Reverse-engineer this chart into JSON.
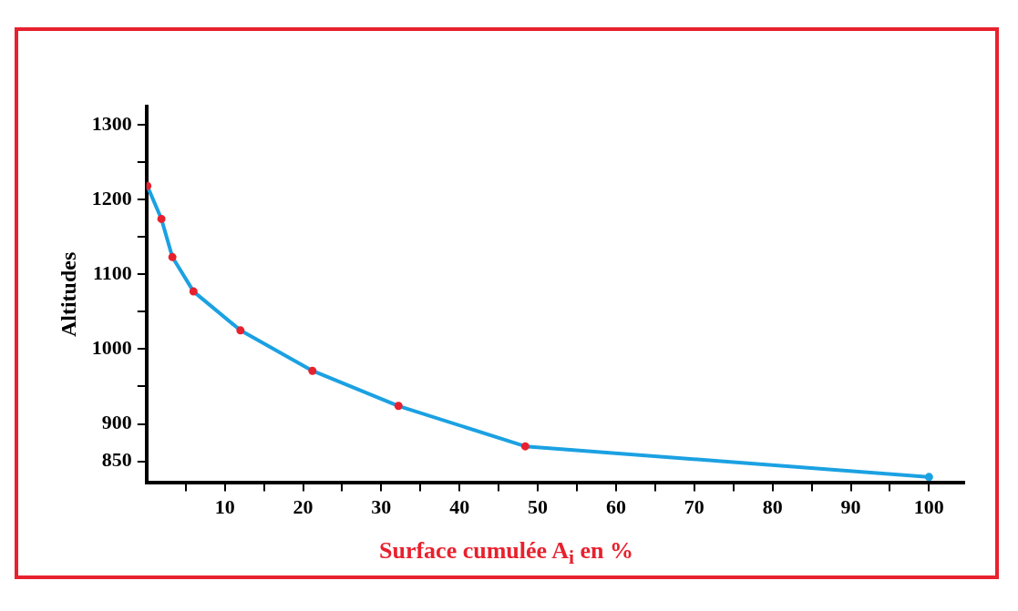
{
  "chart_data": {
    "type": "line",
    "xlabel": "Surface cumulée  A$_{i}$ en %",
    "ylabel": "Altitudes",
    "xlim": [
      0,
      104.5
    ],
    "ylim": [
      822,
      1324
    ],
    "xticks": [
      {
        "value": 5,
        "label": null
      },
      10,
      {
        "value": 15,
        "label": null
      },
      20,
      {
        "value": 25,
        "label": null
      },
      30,
      {
        "value": 35,
        "label": null
      },
      40,
      {
        "value": 45,
        "label": null
      },
      50,
      {
        "value": 55,
        "label": null
      },
      60,
      {
        "value": 65,
        "label": null
      },
      70,
      {
        "value": 75,
        "label": null
      },
      80,
      {
        "value": 85,
        "label": null
      },
      90,
      {
        "value": 95,
        "label": null
      },
      100
    ],
    "yticks": [
      850,
      900,
      {
        "value": 950,
        "label": null
      },
      1000,
      {
        "value": 1050,
        "label": null
      },
      1100,
      {
        "value": 1150,
        "label": null
      },
      1200,
      {
        "value": 1250,
        "label": null
      },
      1300
    ],
    "series": [
      {
        "color": "#1ba1e2",
        "x": [
          0.1,
          1.9,
          3.3,
          6,
          12,
          21.2,
          32.2,
          48.4,
          100
        ],
        "values": [
          1218,
          1174,
          1123,
          1077,
          1025,
          971,
          924,
          870,
          829
        ],
        "colors": [
          "#e8212e",
          "#e8212e",
          "#e8212e",
          "#e8212e",
          "#e8212e",
          "#e8212e",
          "#e8212e",
          "#e8212e",
          "#1ba1e2"
        ]
      }
    ],
    "grid": false,
    "legend": false,
    "marker": "circle",
    "line_style": "solid"
  }
}
